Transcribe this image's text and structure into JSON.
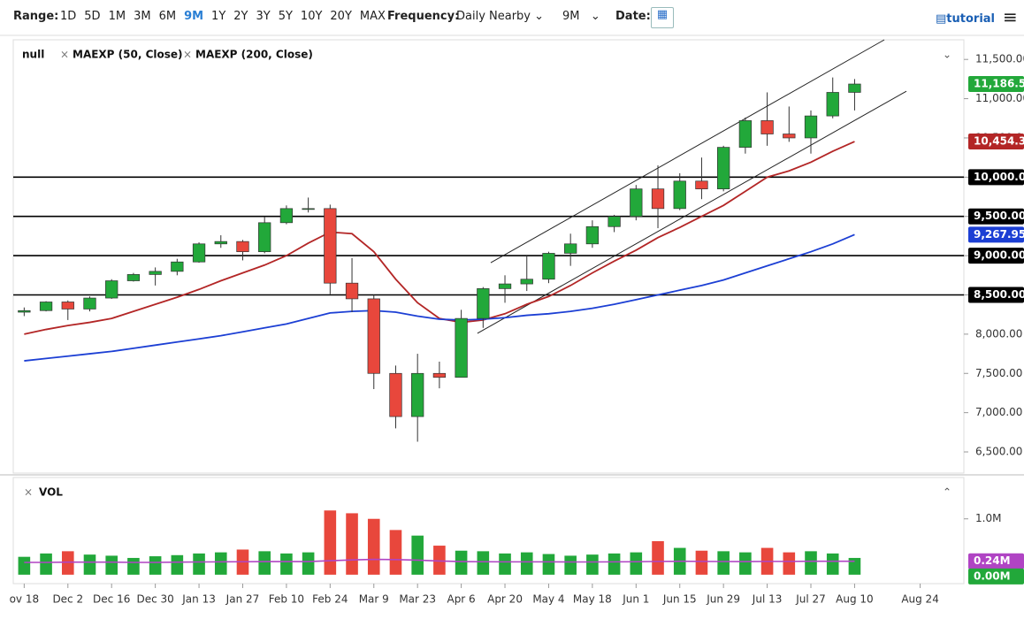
{
  "toolbar": {
    "range_label": "Range:",
    "ranges": [
      "1D",
      "5D",
      "1M",
      "3M",
      "6M",
      "9M",
      "1Y",
      "2Y",
      "3Y",
      "5Y",
      "10Y",
      "20Y",
      "MAX"
    ],
    "active_range_index": 5,
    "frequency_label": "Frequency:",
    "frequency": "Daily Nearby",
    "period": "9M",
    "date_label": "Date:",
    "tutorial": "tutorial"
  },
  "chart_data": {
    "type": "candlestick",
    "x": [
      0,
      1,
      2,
      3,
      4,
      5,
      6,
      7,
      8,
      9,
      10,
      11,
      12,
      13,
      14,
      15,
      16,
      17,
      18,
      19,
      20,
      21,
      22,
      23,
      24,
      25,
      26,
      27,
      28,
      29,
      30,
      31,
      32,
      33,
      34,
      35,
      36,
      37,
      38
    ],
    "xlim": [
      -0.5,
      43
    ],
    "xticks": [
      {
        "value": 0,
        "label": "ov 18"
      },
      {
        "value": 2,
        "label": "Dec 2"
      },
      {
        "value": 4,
        "label": "Dec 16"
      },
      {
        "value": 6,
        "label": "Dec 30"
      },
      {
        "value": 8,
        "label": "Jan 13"
      },
      {
        "value": 10,
        "label": "Jan 27"
      },
      {
        "value": 12,
        "label": "Feb 10"
      },
      {
        "value": 14,
        "label": "Feb 24"
      },
      {
        "value": 16,
        "label": "Mar 9"
      },
      {
        "value": 18,
        "label": "Mar 23"
      },
      {
        "value": 20,
        "label": "Apr 6"
      },
      {
        "value": 22,
        "label": "Apr 20"
      },
      {
        "value": 24,
        "label": "May 4"
      },
      {
        "value": 26,
        "label": "May 18"
      },
      {
        "value": 28,
        "label": "Jun 1"
      },
      {
        "value": 30,
        "label": "Jun 15"
      },
      {
        "value": 32,
        "label": "Jun 29"
      },
      {
        "value": 34,
        "label": "Jul 13"
      },
      {
        "value": 36,
        "label": "Jul 27"
      },
      {
        "value": 38,
        "label": "Aug 10"
      },
      {
        "value": 41,
        "label": "Aug 24"
      }
    ],
    "ylim": [
      6230,
      11750
    ],
    "yticks": [
      {
        "value": 6500,
        "label": "6,500.00"
      },
      {
        "value": 7000,
        "label": "7,000.00"
      },
      {
        "value": 7500,
        "label": "7,500.00"
      },
      {
        "value": 8000,
        "label": "8,000.00"
      },
      {
        "value": 8500,
        "label": "8,500.00"
      },
      {
        "value": 9000,
        "label": "9,000.00"
      },
      {
        "value": 9500,
        "label": "9,500.00"
      },
      {
        "value": 10000,
        "label": "10,000.00"
      },
      {
        "value": 10500,
        "label": "10,500.00"
      },
      {
        "value": 11000,
        "label": "11,000.00"
      },
      {
        "value": 11500,
        "label": "11,500.00"
      }
    ],
    "candles": {
      "name": "null",
      "up_color": "#22a83a",
      "down_color": "#e8473c",
      "last_label": "11,186.50",
      "open": [
        8280,
        8300,
        8410,
        8320,
        8460,
        8680,
        8760,
        8800,
        8920,
        9150,
        9180,
        9050,
        9420,
        9600,
        9600,
        8650,
        8450,
        7500,
        6950,
        7500,
        7450,
        8200,
        8580,
        8640,
        8700,
        9030,
        9150,
        9370,
        9500,
        9850,
        9600,
        9950,
        9850,
        10380,
        10720,
        10550,
        10500,
        10780,
        11080
      ],
      "high": [
        8340,
        8420,
        8430,
        8480,
        8700,
        8780,
        8850,
        8960,
        9170,
        9260,
        9200,
        9490,
        9640,
        9740,
        9650,
        8970,
        8500,
        7600,
        7750,
        7650,
        8310,
        8600,
        8750,
        9000,
        9050,
        9280,
        9450,
        9520,
        9900,
        10150,
        10050,
        10250,
        10400,
        10760,
        11080,
        10900,
        10850,
        11270,
        11250
      ],
      "low": [
        8230,
        8290,
        8180,
        8290,
        8450,
        8670,
        8620,
        8750,
        8910,
        9100,
        8940,
        9030,
        9400,
        9550,
        8510,
        8280,
        7300,
        6800,
        6630,
        7310,
        7450,
        8080,
        8400,
        8550,
        8650,
        8870,
        9100,
        9300,
        9450,
        9350,
        9580,
        9720,
        9820,
        10300,
        10400,
        10450,
        10300,
        10750,
        10850
      ],
      "close": [
        8300,
        8410,
        8320,
        8460,
        8680,
        8760,
        8800,
        8920,
        9150,
        9180,
        9050,
        9420,
        9600,
        9600,
        8650,
        8450,
        7500,
        6950,
        7500,
        7450,
        8200,
        8580,
        8640,
        8700,
        9030,
        9150,
        9370,
        9500,
        9850,
        9600,
        9950,
        9850,
        10380,
        10720,
        10550,
        10500,
        10780,
        11080,
        11186.5
      ]
    },
    "series": [
      {
        "name": "MAEXP (50, Close)",
        "color": "#b32626",
        "last_label": "10,454.32",
        "values": [
          8000,
          8060,
          8110,
          8150,
          8200,
          8290,
          8380,
          8470,
          8570,
          8680,
          8780,
          8880,
          9000,
          9160,
          9300,
          9280,
          9050,
          8700,
          8400,
          8200,
          8150,
          8180,
          8260,
          8380,
          8480,
          8620,
          8780,
          8930,
          9070,
          9230,
          9360,
          9500,
          9640,
          9820,
          10000,
          10080,
          10190,
          10330,
          10454.32
        ]
      },
      {
        "name": "MAEXP (200, Close)",
        "color": "#1c3fd4",
        "last_label": "9,267.95",
        "values": [
          7660,
          7690,
          7720,
          7750,
          7780,
          7820,
          7860,
          7900,
          7940,
          7980,
          8030,
          8080,
          8130,
          8200,
          8270,
          8290,
          8300,
          8280,
          8230,
          8190,
          8180,
          8190,
          8210,
          8240,
          8260,
          8290,
          8330,
          8380,
          8440,
          8500,
          8560,
          8620,
          8690,
          8780,
          8870,
          8960,
          9050,
          9150,
          9267.95
        ]
      }
    ],
    "hlines": [
      {
        "value": 8500,
        "label": "8,500.00"
      },
      {
        "value": 9000,
        "label": "9,000.00"
      },
      {
        "value": 9500,
        "label": "9,500.00"
      },
      {
        "value": 10000,
        "label": "10,000.00"
      }
    ],
    "trendlines": [
      {
        "x": [
          21.35,
          39.36
        ],
        "y": [
          8910,
          11750
        ]
      },
      {
        "x": [
          20.74,
          40.37
        ],
        "y": [
          8010,
          11095
        ]
      }
    ],
    "volume": {
      "name": "VOL",
      "ylim": [
        -160000,
        1740000
      ],
      "yticks": [
        {
          "value": 1000000,
          "label": "1.0M"
        }
      ],
      "values": [
        320000,
        380000,
        420000,
        360000,
        340000,
        300000,
        330000,
        350000,
        380000,
        400000,
        450000,
        420000,
        380000,
        400000,
        1150000,
        1100000,
        1000000,
        800000,
        700000,
        520000,
        430000,
        420000,
        380000,
        400000,
        370000,
        340000,
        360000,
        380000,
        400000,
        600000,
        480000,
        430000,
        420000,
        400000,
        480000,
        400000,
        420000,
        380000,
        300000
      ],
      "average": {
        "color": "#b044c4",
        "last_label": "0.24M",
        "values": [
          220000,
          220000,
          225000,
          225000,
          225000,
          220000,
          220000,
          225000,
          228000,
          230000,
          232000,
          235000,
          235000,
          235000,
          250000,
          265000,
          275000,
          270000,
          260000,
          245000,
          235000,
          232000,
          230000,
          230000,
          230000,
          228000,
          228000,
          230000,
          232000,
          238000,
          240000,
          238000,
          236000,
          235000,
          238000,
          238000,
          240000,
          240000,
          240000
        ]
      },
      "current": {
        "value": 0,
        "label": "0.00M"
      }
    }
  }
}
